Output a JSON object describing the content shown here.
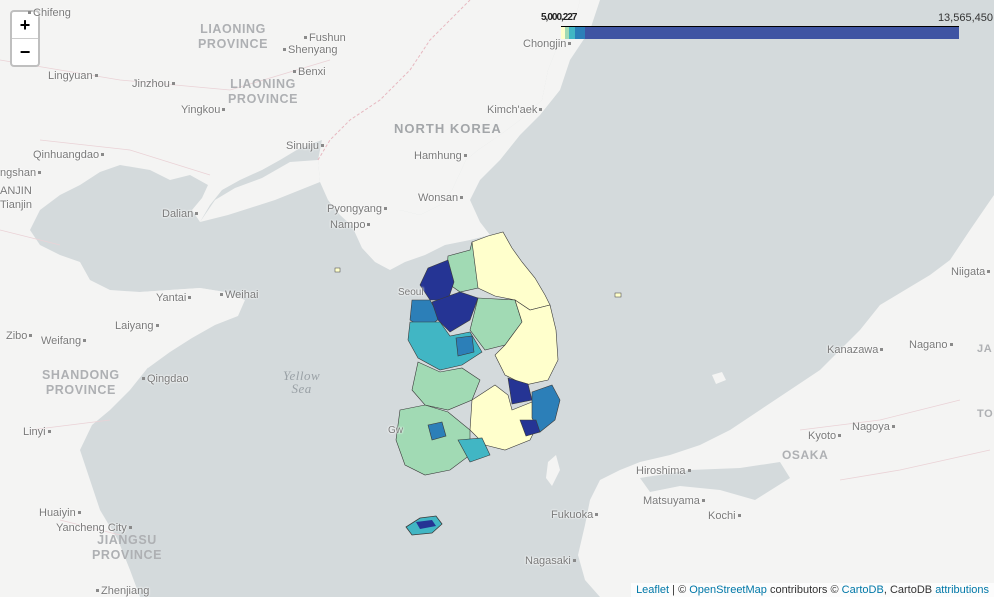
{
  "zoom": {
    "in_label": "+",
    "out_label": "−"
  },
  "legend": {
    "max_label": "13,565,450",
    "min_label": "5,000,227",
    "colors": [
      "#ffffcc",
      "#a1dab4",
      "#41b6c4",
      "#2c7fb8",
      "#253494"
    ]
  },
  "sea_label": {
    "line1": "Yellow",
    "line2": "Sea"
  },
  "country_label": "NORTH KOREA",
  "provinces": [
    {
      "line1": "LIAONING",
      "line2": "PROVINCE"
    },
    {
      "line1": "LIAONING",
      "line2": "PROVINCE"
    },
    {
      "line1": "SHANDONG",
      "line2": "PROVINCE"
    },
    {
      "line1": "JIANGSU",
      "line2": "PROVINCE"
    }
  ],
  "cities": [
    "Chifeng",
    "Fushun",
    "Shenyang",
    "Benxi",
    "Lingyuan",
    "Jinzhou",
    "Yingkou",
    "Qinhuangdao",
    "ANJIN",
    "ngshan",
    "Tianjin",
    "Dalian",
    "Sinuiju",
    "Hamhung",
    "Kimch'aek",
    "Chongjin",
    "Pyongyang",
    "Nampo",
    "Wonsan",
    "Seoul",
    "Yantai",
    "Weihai",
    "Laiyang",
    "Zibo",
    "Weifang",
    "Qingdao",
    "Linyi",
    "Huaiyin",
    "Yancheng City",
    "Zhenjiang",
    "Niigata",
    "Kanazawa",
    "Nagano",
    "JA",
    "TOK",
    "Kyoto",
    "OSAKA",
    "Nagoya",
    "Hiroshima",
    "Matsuyama",
    "Kochi",
    "Fukuoka",
    "Nagasaki",
    "Gw"
  ],
  "attribution": {
    "leaflet": "Leaflet",
    "sep1": " | © ",
    "osm": "OpenStreetMap",
    "contributors": " contributors © ",
    "cartodb": "CartoDB",
    "cartodb2": ", CartoDB ",
    "attributions": "attributions"
  }
}
